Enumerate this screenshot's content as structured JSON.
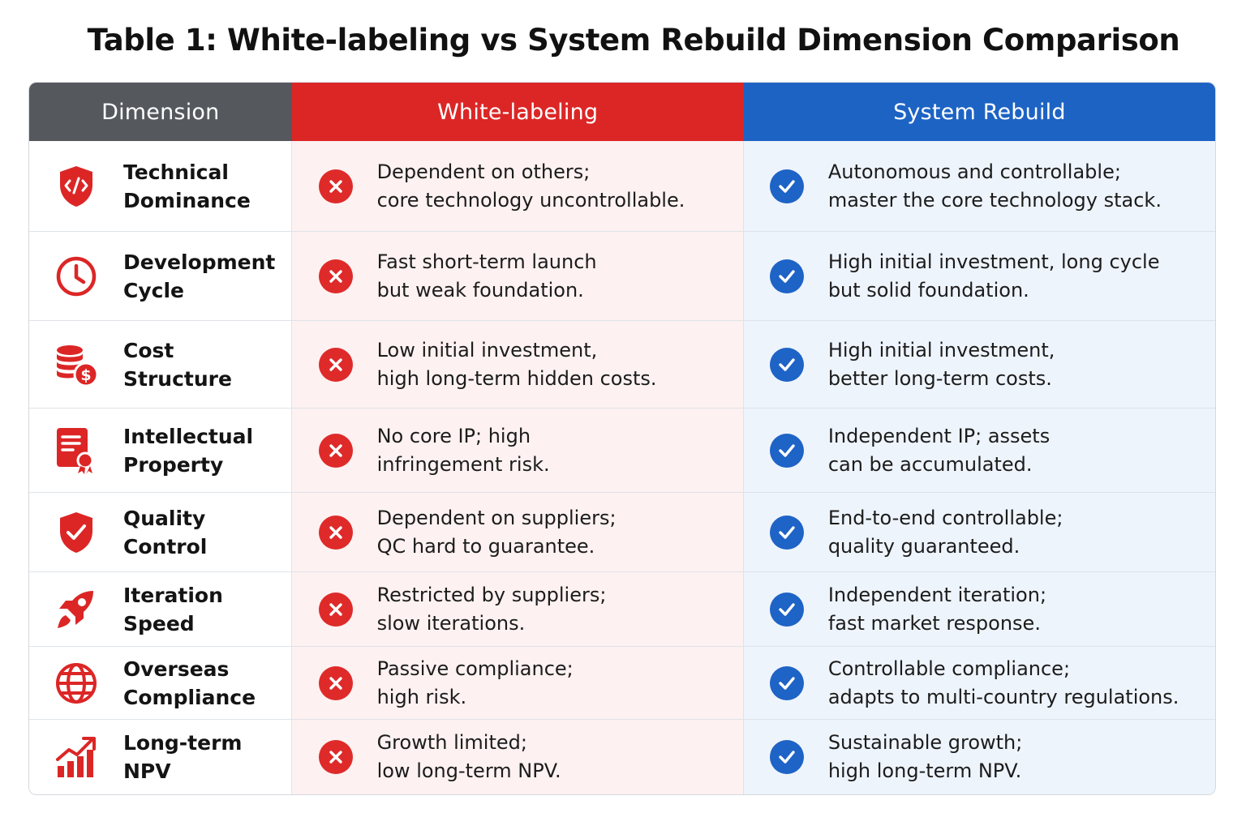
{
  "title": "Table 1: White-labeling vs System Rebuild Dimension Comparison",
  "headers": {
    "dimension": "Dimension",
    "white_labeling": "White-labeling",
    "system_rebuild": "System Rebuild"
  },
  "colors": {
    "dimension_header": "#55595e",
    "white_labeling_header": "#dc2626",
    "system_rebuild_header": "#1d63c4",
    "icon_red": "#dc2626"
  },
  "rows": [
    {
      "icon": "shield-code-icon",
      "dimension": "Technical\nDominance",
      "white_labeling": "Dependent on others;\ncore technology uncontrollable.",
      "system_rebuild": "Autonomous and controllable;\nmaster the core technology stack."
    },
    {
      "icon": "clock-icon",
      "dimension": "Development\nCycle",
      "white_labeling": "Fast short-term launch\nbut weak foundation.",
      "system_rebuild": "High initial investment, long cycle\nbut solid foundation."
    },
    {
      "icon": "coins-dollar-icon",
      "dimension": "Cost\nStructure",
      "white_labeling": "Low initial investment,\nhigh long-term hidden costs.",
      "system_rebuild": "High initial investment,\nbetter long-term costs."
    },
    {
      "icon": "certificate-icon",
      "dimension": "Intellectual\nProperty",
      "white_labeling": "No core IP; high\ninfringement risk.",
      "system_rebuild": "Independent IP; assets\ncan be accumulated."
    },
    {
      "icon": "shield-check-icon",
      "dimension": "Quality\nControl",
      "white_labeling": "Dependent on suppliers;\nQC hard to guarantee.",
      "system_rebuild": "End-to-end controllable;\nquality guaranteed."
    },
    {
      "icon": "rocket-icon",
      "dimension": "Iteration\nSpeed",
      "white_labeling": "Restricted by suppliers;\nslow iterations.",
      "system_rebuild": "Independent iteration;\nfast market response."
    },
    {
      "icon": "globe-icon",
      "dimension": "Overseas\nCompliance",
      "white_labeling": "Passive compliance;\nhigh risk.",
      "system_rebuild": "Controllable compliance;\nadapts to multi-country regulations."
    },
    {
      "icon": "growth-chart-icon",
      "dimension": "Long-term\nNPV",
      "white_labeling": "Growth limited;\nlow long-term NPV.",
      "system_rebuild": "Sustainable growth;\nhigh long-term NPV."
    }
  ]
}
